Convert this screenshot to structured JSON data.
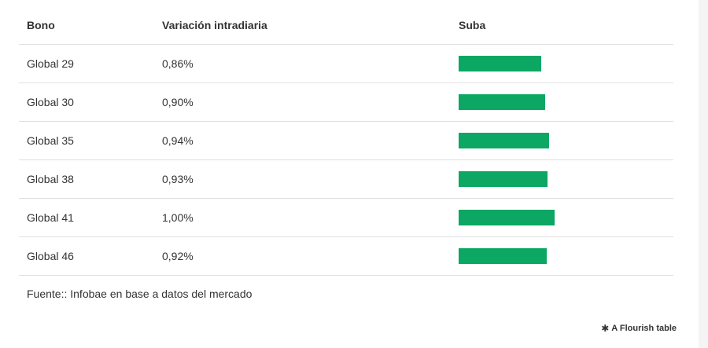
{
  "chart_data": {
    "type": "table",
    "columns": [
      "Bono",
      "Variación intradiaria",
      "Suba"
    ],
    "rows": [
      {
        "bono": "Global 29",
        "variacion": "0,86%",
        "value": 0.86
      },
      {
        "bono": "Global 30",
        "variacion": "0,90%",
        "value": 0.9
      },
      {
        "bono": "Global 35",
        "variacion": "0,94%",
        "value": 0.94
      },
      {
        "bono": "Global 38",
        "variacion": "0,93%",
        "value": 0.93
      },
      {
        "bono": "Global 41",
        "variacion": "1,00%",
        "value": 1.0
      },
      {
        "bono": "Global 46",
        "variacion": "0,92%",
        "value": 0.92
      }
    ],
    "bar_color": "#0ca763",
    "bar_max": 1.0
  },
  "footer": {
    "source": "Fuente:: Infobae en base a datos del mercado",
    "credit": "A Flourish table",
    "credit_icon": "flourish-star-icon"
  },
  "colors": {
    "bar": "#0ca763",
    "divider": "#e0e0e0",
    "text": "#333333"
  }
}
